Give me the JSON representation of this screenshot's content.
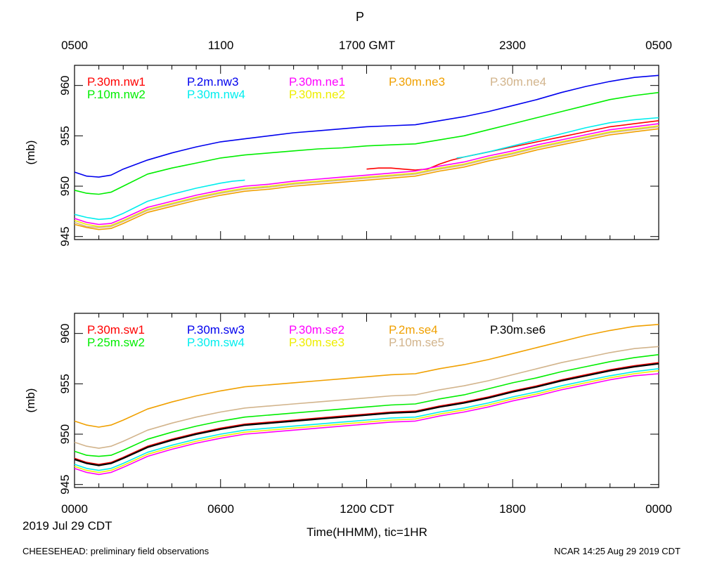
{
  "title": "P",
  "top_axis": {
    "ticks": [
      "0500",
      "1100",
      "1700 GMT",
      "2300",
      "0500"
    ]
  },
  "bottom_axis": {
    "ticks": [
      "0000",
      "0600",
      "1200 CDT",
      "1800",
      "0000"
    ],
    "label": "Time(HHMM), tic=1HR",
    "date": "2019 Jul 29 CDT"
  },
  "footer": {
    "left": "CHEESEHEAD: preliminary field observations",
    "right": "NCAR 14:25 Aug 29 2019 CDT"
  },
  "chart_data": [
    {
      "type": "line",
      "panel": "top",
      "ylabel": "(mb)",
      "ylim": [
        944.7,
        962.0
      ],
      "xlim": [
        0,
        24
      ],
      "xunit": "hours CDT",
      "y_ticks": [
        "945",
        "950",
        "955",
        "960"
      ],
      "y_tick_values": [
        945,
        950,
        955,
        960
      ],
      "x_tick_values": [
        0,
        6,
        12,
        18,
        24
      ],
      "grid": false,
      "series": [
        {
          "name": "P.30m.nw1",
          "color": "#ff0000",
          "x": [
            12,
            12.5,
            13,
            13.5,
            14,
            14.5,
            15,
            15.5,
            16,
            17,
            18,
            19,
            20,
            21,
            22,
            23,
            24
          ],
          "y": [
            951.7,
            951.8,
            951.8,
            951.7,
            951.6,
            951.7,
            952.2,
            952.6,
            952.9,
            953.4,
            953.9,
            954.4,
            954.9,
            955.4,
            955.9,
            956.2,
            956.5
          ]
        },
        {
          "name": "P.10m.nw2",
          "color": "#00ee00",
          "x": [
            0,
            0.5,
            1,
            1.5,
            2,
            3,
            4,
            5,
            6,
            7,
            8,
            9,
            10,
            11,
            12,
            13,
            14,
            15,
            16,
            17,
            18,
            19,
            20,
            21,
            22,
            23,
            24
          ],
          "y": [
            949.6,
            949.3,
            949.2,
            949.4,
            950.0,
            951.2,
            951.8,
            952.3,
            952.8,
            953.1,
            953.3,
            953.5,
            953.7,
            953.8,
            954.0,
            954.1,
            954.2,
            954.6,
            955.0,
            955.6,
            956.2,
            956.8,
            957.4,
            958.0,
            958.6,
            959.0,
            959.3
          ]
        },
        {
          "name": "P.2m.nw3",
          "color": "#0000ee",
          "x": [
            0,
            0.5,
            1,
            1.5,
            2,
            3,
            4,
            5,
            6,
            7,
            8,
            9,
            10,
            11,
            12,
            13,
            14,
            15,
            16,
            17,
            18,
            19,
            20,
            21,
            22,
            23,
            24
          ],
          "y": [
            951.4,
            951.0,
            950.9,
            951.1,
            951.7,
            952.6,
            953.3,
            953.9,
            954.4,
            954.7,
            955.0,
            955.3,
            955.5,
            955.7,
            955.9,
            956.0,
            956.1,
            956.5,
            956.9,
            957.4,
            958.0,
            958.6,
            959.3,
            959.9,
            960.4,
            960.8,
            961.0
          ]
        },
        {
          "name": "P.30m.nw4",
          "color": "#00eeee",
          "x": [
            0,
            0.5,
            1,
            1.5,
            2,
            2.5,
            3,
            4,
            5,
            6,
            6.5,
            7
          ],
          "y": [
            947.2,
            946.9,
            946.7,
            946.8,
            947.3,
            947.9,
            948.5,
            949.2,
            949.8,
            950.3,
            950.5,
            950.6
          ]
        },
        {
          "name": "P.30m.nw4b",
          "legend": false,
          "color": "#00eeee",
          "x": [
            15.7,
            16,
            17,
            18,
            19,
            20,
            21,
            22,
            23,
            24
          ],
          "y": [
            952.8,
            952.9,
            953.4,
            954.0,
            954.6,
            955.2,
            955.8,
            956.3,
            956.6,
            956.8
          ]
        },
        {
          "name": "P.30m.ne1",
          "color": "#ff00ff",
          "x": [
            0,
            0.5,
            1,
            1.5,
            2,
            3,
            4,
            5,
            6,
            7,
            8,
            9,
            10,
            11,
            12,
            13,
            14,
            15,
            16,
            17,
            18,
            19,
            20,
            21,
            22,
            23,
            24
          ],
          "y": [
            946.8,
            946.4,
            946.2,
            946.3,
            946.8,
            947.9,
            948.5,
            949.1,
            949.6,
            950.0,
            950.2,
            950.5,
            950.7,
            950.9,
            951.1,
            951.3,
            951.5,
            952.0,
            952.4,
            953.0,
            953.5,
            954.1,
            954.6,
            955.1,
            955.6,
            955.9,
            956.2
          ]
        },
        {
          "name": "P.30m.ne2",
          "color": "#eeee00",
          "x": [
            0,
            0.5,
            1,
            1.5,
            2,
            3,
            4,
            5,
            6,
            7,
            8,
            9,
            10,
            11,
            12,
            13,
            14,
            15,
            16,
            17,
            18,
            19,
            20,
            21,
            22,
            23,
            24
          ],
          "y": [
            946.6,
            946.2,
            946.0,
            946.1,
            946.6,
            947.7,
            948.3,
            948.9,
            949.4,
            949.8,
            950.0,
            950.3,
            950.5,
            950.7,
            950.9,
            951.1,
            951.3,
            951.8,
            952.2,
            952.8,
            953.3,
            953.9,
            954.4,
            954.9,
            955.4,
            955.7,
            956.0
          ]
        },
        {
          "name": "P.30m.ne3",
          "color": "#f0a000",
          "x": [
            0,
            0.5,
            1,
            1.5,
            2,
            3,
            4,
            5,
            6,
            7,
            8,
            9,
            10,
            11,
            12,
            13,
            14,
            15,
            16,
            17,
            18,
            19,
            20,
            21,
            22,
            23,
            24
          ],
          "y": [
            946.2,
            945.9,
            945.7,
            945.8,
            946.3,
            947.4,
            948.0,
            948.6,
            949.1,
            949.5,
            949.7,
            950.0,
            950.2,
            950.4,
            950.6,
            950.8,
            951.0,
            951.5,
            951.9,
            952.5,
            953.0,
            953.6,
            954.1,
            954.6,
            955.1,
            955.4,
            955.7
          ]
        },
        {
          "name": "P.30m.ne4",
          "color": "#d2b48c",
          "x": [
            0,
            0.5,
            1,
            1.5,
            2,
            3,
            4,
            5,
            6,
            7,
            8,
            9,
            10,
            11,
            12,
            13,
            14,
            15,
            16,
            17,
            18,
            19,
            20,
            21,
            22,
            23,
            24
          ],
          "y": [
            946.4,
            946.0,
            945.9,
            946.0,
            946.5,
            947.6,
            948.2,
            948.8,
            949.3,
            949.7,
            949.9,
            950.2,
            950.4,
            950.6,
            950.8,
            951.0,
            951.2,
            951.7,
            952.1,
            952.7,
            953.2,
            953.8,
            954.3,
            954.8,
            955.3,
            955.6,
            955.9
          ]
        }
      ]
    },
    {
      "type": "line",
      "panel": "bottom",
      "ylabel": "(mb)",
      "ylim": [
        944.7,
        962.0
      ],
      "xlim": [
        0,
        24
      ],
      "xunit": "hours CDT",
      "y_ticks": [
        "945",
        "950",
        "955",
        "960"
      ],
      "y_tick_values": [
        945,
        950,
        955,
        960
      ],
      "x_tick_values": [
        0,
        6,
        12,
        18,
        24
      ],
      "grid": false,
      "series": [
        {
          "name": "P.30m.sw1",
          "color": "#ff0000",
          "x": [
            0,
            0.5,
            1,
            1.5,
            2,
            3,
            4,
            5,
            6,
            7,
            8,
            9,
            10,
            11,
            12,
            13,
            14,
            15,
            16,
            17,
            18,
            19,
            20,
            21,
            22,
            23,
            24
          ],
          "y": [
            947.6,
            947.2,
            947.0,
            947.2,
            947.7,
            948.8,
            949.5,
            950.1,
            950.6,
            951.0,
            951.2,
            951.4,
            951.6,
            951.8,
            952.0,
            952.2,
            952.3,
            952.8,
            953.2,
            953.7,
            954.3,
            954.8,
            955.4,
            955.9,
            956.4,
            956.8,
            957.1
          ]
        },
        {
          "name": "P.25m.sw2",
          "color": "#00ee00",
          "x": [
            0,
            0.5,
            1,
            1.5,
            2,
            3,
            4,
            5,
            6,
            7,
            8,
            9,
            10,
            11,
            12,
            13,
            14,
            15,
            16,
            17,
            18,
            19,
            20,
            21,
            22,
            23,
            24
          ],
          "y": [
            948.3,
            947.9,
            947.8,
            947.9,
            948.4,
            949.5,
            950.2,
            950.8,
            951.3,
            951.7,
            951.9,
            952.1,
            952.3,
            952.5,
            952.7,
            952.9,
            953.0,
            953.5,
            953.9,
            954.5,
            955.1,
            955.6,
            956.2,
            956.7,
            957.2,
            957.6,
            957.9
          ]
        },
        {
          "name": "P.30m.sw3",
          "color": "#0000ee",
          "x": [
            0,
            0.5,
            1,
            1.5,
            2,
            3,
            4,
            5,
            6,
            7,
            8,
            9,
            10,
            11,
            12,
            13,
            14,
            15,
            16,
            17,
            18,
            19,
            20,
            21,
            22,
            23,
            24
          ],
          "y": [
            947.5,
            947.1,
            946.9,
            947.1,
            947.6,
            948.7,
            949.4,
            950.0,
            950.5,
            950.9,
            951.1,
            951.3,
            951.5,
            951.7,
            951.9,
            952.1,
            952.2,
            952.7,
            953.1,
            953.6,
            954.2,
            954.7,
            955.3,
            955.8,
            956.3,
            956.7,
            957.0
          ]
        },
        {
          "name": "P.30m.sw4",
          "color": "#00eeee",
          "x": [
            0,
            0.5,
            1,
            1.5,
            2,
            3,
            4,
            5,
            6,
            7,
            8,
            9,
            10,
            11,
            12,
            13,
            14,
            15,
            16,
            17,
            18,
            19,
            20,
            21,
            22,
            23,
            24
          ],
          "y": [
            947.0,
            946.6,
            946.4,
            946.6,
            947.1,
            948.2,
            948.9,
            949.5,
            950.0,
            950.4,
            950.6,
            950.8,
            951.0,
            951.2,
            951.4,
            951.6,
            951.7,
            952.2,
            952.6,
            953.1,
            953.7,
            954.2,
            954.8,
            955.3,
            955.8,
            956.2,
            956.5
          ]
        },
        {
          "name": "P.30m.se2",
          "color": "#ff00ff",
          "x": [
            0,
            0.5,
            1,
            1.5,
            2,
            3,
            4,
            5,
            6,
            7,
            8,
            9,
            10,
            11,
            12,
            13,
            14,
            15,
            16,
            17,
            18,
            19,
            20,
            21,
            22,
            23,
            24
          ],
          "y": [
            946.6,
            946.2,
            946.0,
            946.2,
            946.7,
            947.8,
            948.5,
            949.1,
            949.6,
            950.0,
            950.2,
            950.4,
            950.6,
            950.8,
            951.0,
            951.2,
            951.3,
            951.8,
            952.2,
            952.7,
            953.3,
            953.8,
            954.4,
            954.9,
            955.4,
            955.8,
            956.0
          ]
        },
        {
          "name": "P.30m.se3",
          "color": "#eeee00",
          "x": [
            0,
            0.5,
            1,
            1.5,
            2,
            3,
            4,
            5,
            6,
            7,
            8,
            9,
            10,
            11,
            12,
            13,
            14,
            15,
            16,
            17,
            18,
            19,
            20,
            21,
            22,
            23,
            24
          ],
          "y": [
            946.8,
            946.4,
            946.2,
            946.4,
            946.9,
            948.0,
            948.7,
            949.3,
            949.8,
            950.2,
            950.4,
            950.6,
            950.8,
            951.0,
            951.2,
            951.4,
            951.5,
            952.0,
            952.4,
            952.9,
            953.5,
            954.0,
            954.6,
            955.1,
            955.6,
            956.0,
            956.3
          ]
        },
        {
          "name": "P.2m.se4",
          "color": "#f0a000",
          "x": [
            0,
            0.5,
            1,
            1.5,
            2,
            3,
            4,
            5,
            6,
            7,
            8,
            9,
            10,
            11,
            12,
            13,
            14,
            15,
            16,
            17,
            18,
            19,
            20,
            21,
            22,
            23,
            24
          ],
          "y": [
            951.3,
            950.9,
            950.7,
            950.9,
            951.4,
            952.5,
            953.2,
            953.8,
            954.3,
            954.7,
            954.9,
            955.1,
            955.3,
            955.5,
            955.7,
            955.9,
            956.0,
            956.5,
            956.9,
            957.4,
            958.0,
            958.6,
            959.2,
            959.8,
            960.3,
            960.7,
            960.9
          ]
        },
        {
          "name": "P.10m.se5",
          "color": "#d2b48c",
          "x": [
            0,
            0.5,
            1,
            1.5,
            2,
            3,
            4,
            5,
            6,
            7,
            8,
            9,
            10,
            11,
            12,
            13,
            14,
            15,
            16,
            17,
            18,
            19,
            20,
            21,
            22,
            23,
            24
          ],
          "y": [
            949.2,
            948.8,
            948.6,
            948.8,
            949.3,
            950.4,
            951.1,
            951.7,
            952.2,
            952.6,
            952.8,
            953.0,
            953.2,
            953.4,
            953.6,
            953.8,
            953.9,
            954.4,
            954.8,
            955.3,
            955.9,
            956.5,
            957.1,
            957.6,
            958.1,
            958.5,
            958.7
          ]
        },
        {
          "name": "P.30m.se6",
          "color": "#000000",
          "width": 2.2,
          "x": [
            0,
            0.5,
            1,
            1.5,
            2,
            3,
            4,
            5,
            6,
            7,
            8,
            9,
            10,
            11,
            12,
            13,
            14,
            15,
            16,
            17,
            18,
            19,
            20,
            21,
            22,
            23,
            24
          ],
          "y": [
            947.5,
            947.1,
            946.9,
            947.1,
            947.6,
            948.7,
            949.4,
            950.0,
            950.5,
            950.9,
            951.1,
            951.3,
            951.5,
            951.7,
            951.9,
            952.1,
            952.2,
            952.7,
            953.1,
            953.6,
            954.2,
            954.7,
            955.3,
            955.8,
            956.3,
            956.7,
            957.0
          ]
        }
      ]
    }
  ]
}
